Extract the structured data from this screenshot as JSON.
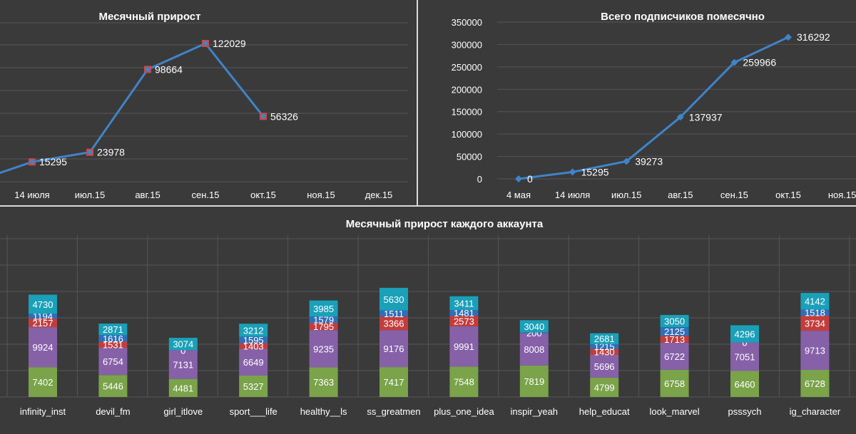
{
  "colors": {
    "background": "#3a3a3a",
    "divider": "#d9d9d9",
    "line": "#3f84c8",
    "marker_square": "#c64b4b",
    "seg_green": "#7aa34a",
    "seg_purple": "#8661a8",
    "seg_red": "#c33d3d",
    "seg_blue": "#2e6fba",
    "seg_teal": "#1aa0b8"
  },
  "chart_data": [
    {
      "type": "line",
      "title": "Месячный прирост",
      "categories": [
        "14 июля",
        "июл.15",
        "авг.15",
        "сен.15",
        "окт.15",
        "ноя.15",
        "дек.15"
      ],
      "values": [
        15295,
        23978,
        98664,
        122029,
        56326
      ],
      "labels": [
        "15295",
        "23978",
        "98664",
        "122029",
        "56326"
      ],
      "ylim": [
        0,
        140000
      ]
    },
    {
      "type": "line",
      "title": "Всего подписчиков помесячно",
      "categories": [
        "4 мая",
        "14 июля",
        "июл.15",
        "авг.15",
        "сен.15",
        "окт.15",
        "ноя.15"
      ],
      "values": [
        0,
        15295,
        39273,
        137937,
        259966,
        316292
      ],
      "labels": [
        "0",
        "15295",
        "39273",
        "137937",
        "259966",
        "316292"
      ],
      "yticks": [
        "0",
        "50000",
        "100000",
        "150000",
        "200000",
        "250000",
        "300000",
        "350000"
      ],
      "ylim": [
        0,
        350000
      ]
    },
    {
      "type": "bar",
      "stacked": true,
      "title": "Месячный прирост каждого аккаунта",
      "categories": [
        "infinity_inst",
        "devil_fm",
        "girl_itlove",
        "sport___life",
        "healthy__ls",
        "ss_greatmen",
        "plus_one_idea",
        "inspir_yeah",
        "help_educat",
        "look_marvel",
        "psssych",
        "ig_character"
      ],
      "series": [
        {
          "values": [
            7402,
            5446,
            4481,
            5327,
            7363,
            7417,
            7548,
            7819,
            4799,
            6758,
            6460,
            6728
          ]
        },
        {
          "values": [
            9924,
            6754,
            7131,
            6649,
            9235,
            9176,
            9991,
            8008,
            5696,
            6722,
            7051,
            9713
          ]
        },
        {
          "values": [
            2157,
            1531,
            0,
            1403,
            1795,
            3366,
            2573,
            0,
            1430,
            1713,
            0,
            3734
          ]
        },
        {
          "values": [
            1194,
            1616,
            0,
            1595,
            1579,
            1511,
            1481,
            200,
            1215,
            2125,
            0,
            1518
          ]
        },
        {
          "values": [
            4730,
            2871,
            3074,
            3212,
            3985,
            5630,
            3411,
            3040,
            2681,
            3050,
            4296,
            4142
          ]
        }
      ],
      "labels": [
        [
          "7402",
          "5446",
          "4481",
          "5327",
          "7363",
          "7417",
          "7548",
          "7819",
          "4799",
          "6758",
          "6460",
          "6728"
        ],
        [
          "9924",
          "6754",
          "7131",
          "6649",
          "9235",
          "9176",
          "9991",
          "8008",
          "5696",
          "6722",
          "7051",
          "9713"
        ],
        [
          "2157",
          "1531",
          "",
          "1403",
          "1795",
          "3366",
          "2573",
          "",
          "1430",
          "1713",
          "",
          "3734"
        ],
        [
          "1194",
          "1616",
          "0",
          "1595",
          "1579",
          "1511",
          "1481",
          "200",
          "1215",
          "2125",
          "0",
          "1518"
        ],
        [
          "4730",
          "2871",
          "3074",
          "3212",
          "3985",
          "5630",
          "3411",
          "3040",
          "2681",
          "3050",
          "4296",
          "4142"
        ]
      ],
      "ylim": [
        0,
        30000
      ]
    }
  ]
}
